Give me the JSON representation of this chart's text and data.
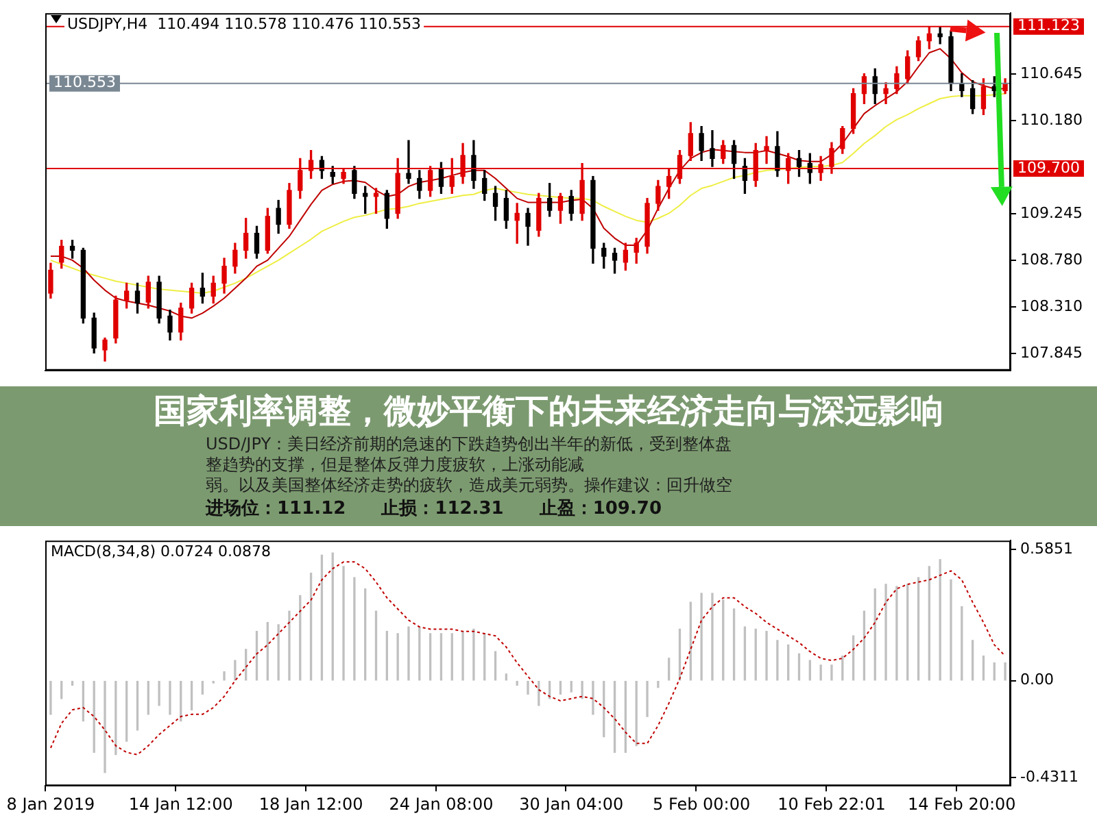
{
  "chart_data": [
    {
      "type": "candlestick",
      "title": "USDJPY,H4  110.494 110.578 110.476 110.553",
      "categories": [
        null,
        null,
        null,
        null,
        null,
        null,
        null,
        null,
        null,
        null,
        null,
        null,
        null,
        null,
        null,
        null,
        null,
        null,
        null,
        null,
        null,
        null,
        null,
        null,
        null,
        null,
        null,
        null,
        null,
        null,
        null,
        null,
        null,
        null,
        null,
        null,
        null,
        null,
        null,
        null,
        null,
        null,
        null,
        null,
        null,
        null,
        null,
        null,
        null,
        null,
        null,
        null,
        null,
        null,
        null,
        null,
        null,
        null,
        null,
        null,
        null,
        null,
        null,
        null,
        null,
        null,
        null,
        null,
        null,
        null,
        null,
        null,
        null,
        null,
        null,
        null,
        null,
        null,
        null,
        null,
        null,
        null,
        null,
        null,
        null,
        null,
        null,
        null,
        null
      ],
      "ohlc": [
        [
          108.45,
          108.75,
          108.4,
          108.68
        ],
        [
          108.76,
          108.98,
          108.7,
          108.92
        ],
        [
          108.92,
          108.98,
          108.8,
          108.88
        ],
        [
          108.88,
          108.9,
          108.15,
          108.2
        ],
        [
          108.2,
          108.25,
          107.85,
          107.9
        ],
        [
          107.88,
          108.0,
          107.77,
          107.98
        ],
        [
          108.0,
          108.42,
          107.95,
          108.38
        ],
        [
          108.38,
          108.55,
          108.3,
          108.47
        ],
        [
          108.47,
          108.55,
          108.25,
          108.35
        ],
        [
          108.36,
          108.62,
          108.3,
          108.56
        ],
        [
          108.56,
          108.62,
          108.15,
          108.2
        ],
        [
          108.22,
          108.28,
          107.98,
          108.06
        ],
        [
          108.06,
          108.35,
          107.98,
          108.3
        ],
        [
          108.3,
          108.55,
          108.25,
          108.5
        ],
        [
          108.5,
          108.65,
          108.35,
          108.42
        ],
        [
          108.42,
          108.62,
          108.35,
          108.55
        ],
        [
          108.55,
          108.8,
          108.45,
          108.72
        ],
        [
          108.72,
          108.95,
          108.65,
          108.88
        ],
        [
          108.88,
          109.2,
          108.8,
          109.05
        ],
        [
          109.05,
          109.12,
          108.8,
          108.85
        ],
        [
          108.88,
          109.3,
          108.85,
          109.22
        ],
        [
          109.3,
          109.38,
          109.05,
          109.14
        ],
        [
          109.14,
          109.55,
          109.1,
          109.48
        ],
        [
          109.48,
          109.8,
          109.4,
          109.68
        ],
        [
          109.68,
          109.88,
          109.6,
          109.78
        ],
        [
          109.78,
          109.82,
          109.6,
          109.68
        ],
        [
          109.66,
          109.72,
          109.55,
          109.62
        ],
        [
          109.6,
          109.7,
          109.55,
          109.66
        ],
        [
          109.68,
          109.72,
          109.4,
          109.45
        ],
        [
          109.45,
          109.52,
          109.25,
          109.42
        ],
        [
          109.42,
          109.5,
          109.25,
          109.45
        ],
        [
          109.45,
          109.48,
          109.1,
          109.2
        ],
        [
          109.25,
          109.8,
          109.2,
          109.65
        ],
        [
          109.65,
          109.98,
          109.55,
          109.6
        ],
        [
          109.6,
          109.68,
          109.4,
          109.48
        ],
        [
          109.48,
          109.72,
          109.42,
          109.68
        ],
        [
          109.7,
          109.76,
          109.45,
          109.52
        ],
        [
          109.52,
          109.8,
          109.45,
          109.62
        ],
        [
          109.62,
          109.95,
          109.55,
          109.83
        ],
        [
          109.83,
          109.98,
          109.5,
          109.58
        ],
        [
          109.6,
          109.68,
          109.38,
          109.45
        ],
        [
          109.45,
          109.52,
          109.18,
          109.32
        ],
        [
          109.4,
          109.48,
          109.1,
          109.18
        ],
        [
          109.18,
          109.35,
          108.95,
          109.25
        ],
        [
          109.25,
          109.3,
          108.93,
          109.12
        ],
        [
          109.08,
          109.45,
          109.02,
          109.4
        ],
        [
          109.4,
          109.55,
          109.22,
          109.28
        ],
        [
          109.28,
          109.45,
          109.15,
          109.42
        ],
        [
          109.42,
          109.48,
          109.18,
          109.25
        ],
        [
          109.25,
          109.75,
          109.18,
          109.58
        ],
        [
          109.58,
          109.62,
          108.75,
          108.9
        ],
        [
          108.9,
          108.95,
          108.7,
          108.82
        ],
        [
          108.85,
          108.9,
          108.65,
          108.78
        ],
        [
          108.76,
          108.95,
          108.68,
          108.88
        ],
        [
          108.86,
          109.0,
          108.75,
          108.95
        ],
        [
          108.92,
          109.4,
          108.85,
          109.35
        ],
        [
          109.35,
          109.58,
          109.28,
          109.52
        ],
        [
          109.52,
          109.7,
          109.4,
          109.62
        ],
        [
          109.6,
          109.88,
          109.55,
          109.83
        ],
        [
          109.83,
          110.16,
          109.78,
          110.05
        ],
        [
          110.05,
          110.12,
          109.78,
          109.88
        ],
        [
          109.9,
          110.08,
          109.72,
          109.8
        ],
        [
          109.8,
          109.98,
          109.75,
          109.93
        ],
        [
          109.93,
          109.98,
          109.6,
          109.75
        ],
        [
          109.72,
          109.8,
          109.45,
          109.58
        ],
        [
          109.58,
          109.95,
          109.52,
          109.88
        ],
        [
          109.88,
          110.02,
          109.75,
          109.92
        ],
        [
          109.92,
          110.07,
          109.62,
          109.68
        ],
        [
          109.68,
          109.85,
          109.55,
          109.8
        ],
        [
          109.8,
          109.88,
          109.62,
          109.72
        ],
        [
          109.75,
          109.85,
          109.55,
          109.66
        ],
        [
          109.66,
          109.82,
          109.58,
          109.74
        ],
        [
          109.72,
          109.96,
          109.65,
          109.9
        ],
        [
          109.9,
          110.12,
          109.85,
          110.1
        ],
        [
          110.1,
          110.5,
          110.05,
          110.45
        ],
        [
          110.45,
          110.65,
          110.35,
          110.62
        ],
        [
          110.62,
          110.7,
          110.35,
          110.45
        ],
        [
          110.45,
          110.56,
          110.35,
          110.5
        ],
        [
          110.5,
          110.72,
          110.45,
          110.65
        ],
        [
          110.6,
          110.88,
          110.55,
          110.82
        ],
        [
          110.82,
          111.02,
          110.78,
          110.98
        ],
        [
          110.98,
          111.12,
          110.9,
          111.05
        ],
        [
          111.05,
          111.12,
          110.95,
          111.02
        ],
        [
          111.02,
          111.08,
          110.48,
          110.55
        ],
        [
          110.55,
          110.65,
          110.42,
          110.48
        ],
        [
          110.5,
          110.58,
          110.25,
          110.3
        ],
        [
          110.3,
          110.6,
          110.24,
          110.52
        ],
        [
          110.52,
          110.62,
          110.42,
          110.48
        ],
        [
          110.48,
          110.6,
          110.45,
          110.55
        ]
      ],
      "series": [
        {
          "type": "line",
          "color": "#c00000",
          "values": [
            108.82,
            108.82,
            108.78,
            108.7,
            108.58,
            108.48,
            108.4,
            108.37,
            108.35,
            108.33,
            108.3,
            108.27,
            108.22,
            108.2,
            108.25,
            108.32,
            108.4,
            108.5,
            108.6,
            108.72,
            108.78,
            108.9,
            109.02,
            109.18,
            109.34,
            109.48,
            109.54,
            109.57,
            109.58,
            109.56,
            109.48,
            109.42,
            109.44,
            109.52,
            109.56,
            109.58,
            109.6,
            109.63,
            109.66,
            109.68,
            109.68,
            109.6,
            109.5,
            109.4,
            109.36,
            109.36,
            109.36,
            109.36,
            109.38,
            109.39,
            109.3,
            109.1,
            109.0,
            108.93,
            108.93,
            109.08,
            109.3,
            109.5,
            109.68,
            109.8,
            109.86,
            109.89,
            109.88,
            109.87,
            109.86,
            109.86,
            109.88,
            109.85,
            109.82,
            109.78,
            109.77,
            109.77,
            109.84,
            109.95,
            110.1,
            110.25,
            110.33,
            110.4,
            110.47,
            110.57,
            110.72,
            110.86,
            110.9,
            110.8,
            110.66,
            110.57,
            110.53,
            110.5,
            110.5
          ]
        },
        {
          "type": "line",
          "color": "#eeee44",
          "values": [
            108.78,
            108.74,
            108.7,
            108.66,
            108.63,
            108.6,
            108.57,
            108.55,
            108.53,
            108.51,
            108.49,
            108.48,
            108.47,
            108.46,
            108.45,
            108.47,
            108.51,
            108.55,
            108.6,
            108.66,
            108.72,
            108.78,
            108.85,
            108.92,
            108.99,
            109.07,
            109.12,
            109.17,
            109.21,
            109.23,
            109.26,
            109.29,
            109.3,
            109.32,
            109.35,
            109.37,
            109.39,
            109.41,
            109.43,
            109.44,
            109.48,
            109.5,
            109.48,
            109.46,
            109.44,
            109.43,
            109.42,
            109.41,
            109.4,
            109.4,
            109.38,
            109.32,
            109.27,
            109.22,
            109.18,
            109.16,
            109.2,
            109.25,
            109.33,
            109.43,
            109.5,
            109.53,
            109.57,
            109.61,
            109.63,
            109.66,
            109.68,
            109.69,
            109.7,
            109.71,
            109.72,
            109.72,
            109.73,
            109.76,
            109.85,
            109.95,
            110.03,
            110.12,
            110.19,
            110.24,
            110.3,
            110.35,
            110.4,
            110.42,
            110.43,
            110.43,
            110.43,
            110.44,
            110.45
          ]
        }
      ],
      "ylim": [
        107.675,
        111.257
      ],
      "yticks": [
        {
          "value": 110.645,
          "label": "110.645"
        },
        {
          "value": 110.18,
          "label": "110.180"
        },
        {
          "value": 109.245,
          "label": "109.245"
        },
        {
          "value": 108.78,
          "label": "108.780"
        },
        {
          "value": 108.31,
          "label": "108.310"
        },
        {
          "value": 107.845,
          "label": "107.845"
        }
      ],
      "ref_lines": [
        {
          "axis": "y",
          "value": 111.123,
          "label": "111.123",
          "color": "#e00000"
        },
        {
          "axis": "y",
          "value": 109.7,
          "label": "109.700",
          "color": "#e00000"
        },
        {
          "axis": "y",
          "value": 110.553,
          "label": "110.553",
          "color": "#7a8894"
        }
      ],
      "annotations": [
        "国家利率调整，微妙平衡下的未来经济走向与深远影响",
        "USD/JPY：美日经济前期的急速的下跌趋势创出半年的新低，受到整体盘",
        "整趋势的支撑，但是整体反弹力度疲软，上涨动能减",
        "弱。以及美国整体经济走势的疲软，造成美元弱势。操作建议：回升做空",
        "进场位：111.12　　止损：112.31　　止盈：109.70"
      ],
      "tick_labels": "y",
      "grid": false,
      "legend": false
    },
    {
      "type": "bar",
      "title": "MACD(8,34,8) 0.0724 0.0878",
      "categories": [
        "8 Jan 2019",
        null,
        null,
        null,
        null,
        null,
        null,
        null,
        null,
        null,
        null,
        null,
        "14 Jan 12:00",
        null,
        null,
        null,
        null,
        null,
        null,
        null,
        null,
        null,
        null,
        null,
        "18 Jan 12:00",
        null,
        null,
        null,
        null,
        null,
        null,
        null,
        null,
        null,
        null,
        null,
        "24 Jan 08:00",
        null,
        null,
        null,
        null,
        null,
        null,
        null,
        null,
        null,
        null,
        null,
        "30 Jan 04:00",
        null,
        null,
        null,
        null,
        null,
        null,
        null,
        null,
        null,
        null,
        null,
        "5 Feb 00:00",
        null,
        null,
        null,
        null,
        null,
        null,
        null,
        null,
        null,
        null,
        null,
        "10 Feb 22:01",
        null,
        null,
        null,
        null,
        null,
        null,
        null,
        null,
        null,
        null,
        null,
        "14 Feb 20:00",
        null,
        null,
        null,
        null
      ],
      "series": [
        {
          "type": "bar",
          "color": "#c0c0c0",
          "values": [
            -0.15,
            -0.08,
            -0.02,
            -0.18,
            -0.32,
            -0.41,
            -0.33,
            -0.27,
            -0.22,
            -0.15,
            -0.11,
            -0.15,
            -0.18,
            -0.13,
            -0.06,
            -0.01,
            0.04,
            0.09,
            0.14,
            0.22,
            0.26,
            0.25,
            0.31,
            0.38,
            0.48,
            0.56,
            0.57,
            0.51,
            0.46,
            0.41,
            0.31,
            0.22,
            0.21,
            0.24,
            0.24,
            0.21,
            0.21,
            0.21,
            0.22,
            0.23,
            0.21,
            0.13,
            0.03,
            -0.02,
            -0.06,
            -0.11,
            -0.08,
            -0.06,
            -0.05,
            -0.08,
            -0.15,
            -0.25,
            -0.32,
            -0.32,
            -0.29,
            -0.16,
            -0.03,
            0.1,
            0.23,
            0.35,
            0.39,
            0.39,
            0.36,
            0.32,
            0.24,
            0.23,
            0.22,
            0.18,
            0.16,
            0.12,
            0.09,
            0.07,
            0.07,
            0.11,
            0.2,
            0.31,
            0.41,
            0.43,
            0.42,
            0.43,
            0.46,
            0.51,
            0.54,
            0.45,
            0.33,
            0.18,
            0.11,
            0.08,
            0.08
          ]
        },
        {
          "type": "line",
          "color": "#c00000",
          "line_style": "dotted",
          "values": [
            -0.3,
            -0.19,
            -0.13,
            -0.12,
            -0.16,
            -0.22,
            -0.29,
            -0.32,
            -0.33,
            -0.29,
            -0.24,
            -0.2,
            -0.16,
            -0.15,
            -0.15,
            -0.12,
            -0.07,
            0.0,
            0.06,
            0.12,
            0.16,
            0.21,
            0.26,
            0.31,
            0.36,
            0.45,
            0.5,
            0.53,
            0.53,
            0.5,
            0.44,
            0.37,
            0.32,
            0.27,
            0.24,
            0.23,
            0.23,
            0.23,
            0.22,
            0.22,
            0.21,
            0.2,
            0.15,
            0.08,
            0.02,
            -0.04,
            -0.07,
            -0.09,
            -0.08,
            -0.07,
            -0.08,
            -0.12,
            -0.17,
            -0.23,
            -0.28,
            -0.28,
            -0.2,
            -0.1,
            0.01,
            0.14,
            0.27,
            0.33,
            0.37,
            0.37,
            0.33,
            0.3,
            0.26,
            0.23,
            0.2,
            0.17,
            0.13,
            0.1,
            0.09,
            0.1,
            0.14,
            0.19,
            0.26,
            0.35,
            0.41,
            0.43,
            0.44,
            0.45,
            0.47,
            0.49,
            0.45,
            0.35,
            0.26,
            0.16,
            0.11
          ]
        }
      ],
      "ylim": [
        -0.469,
        0.625
      ],
      "yticks": [
        {
          "value": 0.5851,
          "label": "0.5851"
        },
        {
          "value": 0,
          "label": "0.00"
        },
        {
          "value": -0.4311,
          "label": "-0.4311"
        }
      ],
      "grid": false,
      "legend": false
    }
  ]
}
